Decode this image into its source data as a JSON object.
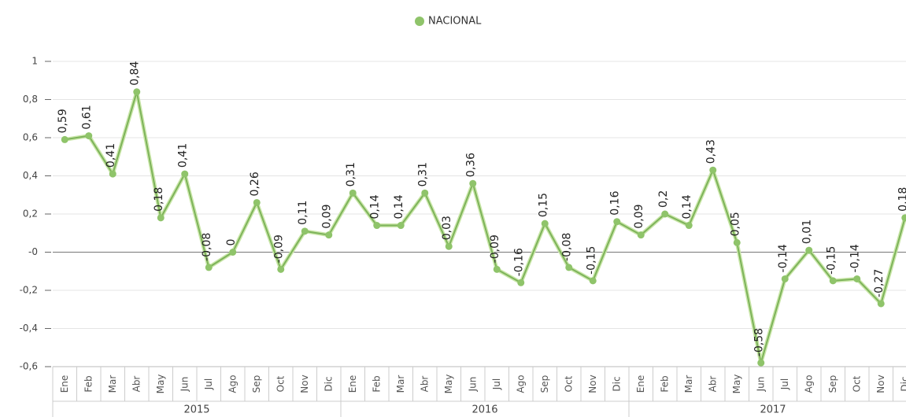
{
  "chart_data": {
    "type": "line",
    "categories": [
      "Ene",
      "Feb",
      "Mar",
      "Abr",
      "May",
      "Jun",
      "Jul",
      "Ago",
      "Sep",
      "Oct",
      "Nov",
      "Dic",
      "Ene",
      "Feb",
      "Mar",
      "Abr",
      "May",
      "Jun",
      "Jul",
      "Ago",
      "Sep",
      "Oct",
      "Nov",
      "Dic",
      "Ene",
      "Feb",
      "Mar",
      "Abr",
      "May",
      "Jun",
      "Jul",
      "Ago",
      "Sep",
      "Oct",
      "Nov",
      "Dic"
    ],
    "category_groups": [
      "2015",
      "2016",
      "2017"
    ],
    "series": [
      {
        "name": "NACIONAL",
        "color": "#8fc46a",
        "values": [
          0.59,
          0.61,
          0.41,
          0.84,
          0.18,
          0.41,
          -0.08,
          0,
          0.26,
          -0.09,
          0.11,
          0.09,
          0.31,
          0.14,
          0.14,
          0.31,
          0.03,
          0.36,
          -0.09,
          -0.16,
          0.15,
          -0.08,
          -0.15,
          0.16,
          0.09,
          0.2,
          0.14,
          0.43,
          0.05,
          -0.58,
          -0.14,
          0.01,
          -0.15,
          -0.14,
          -0.27,
          0.18
        ],
        "value_labels": [
          "0,59",
          "0,61",
          "0,41",
          "0,84",
          "0,18",
          "0,41",
          "-0,08",
          "0",
          "0,26",
          "-0,09",
          "0,11",
          "0,09",
          "0,31",
          "0,14",
          "0,14",
          "0,31",
          "0,03",
          "0,36",
          "-0,09",
          "-0,16",
          "0,15",
          "-0,08",
          "-0,15",
          "0,16",
          "0,09",
          "0,2",
          "0,14",
          "0,43",
          "0,05",
          "-0,58",
          "-0,14",
          "0,01",
          "-0,15",
          "-0,14",
          "-0,27",
          "0,18"
        ]
      }
    ],
    "ylim": [
      -0.6,
      1
    ],
    "yticks": [
      {
        "value": -0.6,
        "label": "-0,6"
      },
      {
        "value": -0.4,
        "label": "-0,4"
      },
      {
        "value": -0.2,
        "label": "-0,2"
      },
      {
        "value": 0,
        "label": "-0"
      },
      {
        "value": 0.2,
        "label": "0,2"
      },
      {
        "value": 0.4,
        "label": "0,4"
      },
      {
        "value": 0.6,
        "label": "0,6"
      },
      {
        "value": 0.8,
        "label": "0,8"
      },
      1
    ],
    "grid": true
  }
}
